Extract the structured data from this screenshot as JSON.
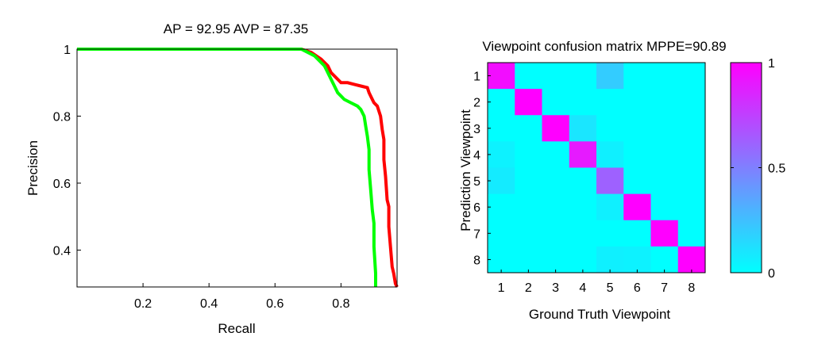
{
  "chart_data": [
    {
      "type": "line",
      "title": "AP = 92.95 AVP = 87.35",
      "xlabel": "Recall",
      "ylabel": "Precision",
      "xlim": [
        0,
        0.97
      ],
      "ylim": [
        0.29,
        1
      ],
      "xticks": [
        "0.2",
        "0.4",
        "0.6",
        "0.8"
      ],
      "yticks": [
        "0.4",
        "0.6",
        "0.8",
        "1"
      ],
      "grid": false,
      "legend": "none",
      "series": [
        {
          "color": "#ff0000",
          "x": [
            0,
            0.68,
            0.71,
            0.74,
            0.76,
            0.77,
            0.79,
            0.8,
            0.82,
            0.84,
            0.86,
            0.88,
            0.885,
            0.89,
            0.895,
            0.9,
            0.91,
            0.92,
            0.925,
            0.93,
            0.93,
            0.935,
            0.94,
            0.945,
            0.945,
            0.95,
            0.955,
            0.96,
            0.965,
            0.97
          ],
          "y": [
            1.0,
            1.0,
            0.99,
            0.97,
            0.95,
            0.93,
            0.91,
            0.9,
            0.9,
            0.895,
            0.89,
            0.885,
            0.87,
            0.86,
            0.85,
            0.84,
            0.83,
            0.8,
            0.76,
            0.73,
            0.67,
            0.62,
            0.55,
            0.53,
            0.47,
            0.41,
            0.35,
            0.33,
            0.3,
            0.29
          ]
        },
        {
          "color": "#00ff00",
          "x": [
            0,
            0.68,
            0.7,
            0.72,
            0.74,
            0.75,
            0.76,
            0.77,
            0.78,
            0.79,
            0.8,
            0.81,
            0.83,
            0.85,
            0.86,
            0.87,
            0.875,
            0.88,
            0.885,
            0.885,
            0.89,
            0.895,
            0.9,
            0.9,
            0.905,
            0.905
          ],
          "y": [
            1.0,
            1.0,
            0.99,
            0.98,
            0.96,
            0.95,
            0.93,
            0.91,
            0.89,
            0.87,
            0.86,
            0.85,
            0.84,
            0.83,
            0.82,
            0.8,
            0.77,
            0.74,
            0.7,
            0.64,
            0.58,
            0.52,
            0.48,
            0.41,
            0.33,
            0.29
          ]
        }
      ]
    },
    {
      "type": "heatmap",
      "title": "Viewpoint confusion matrix MPPE=90.89",
      "xlabel": "Ground Truth Viewpoint",
      "ylabel": "Prediction Viewpoint",
      "x_categories": [
        "1",
        "2",
        "3",
        "4",
        "5",
        "6",
        "7",
        "8"
      ],
      "y_categories": [
        "1",
        "2",
        "3",
        "4",
        "5",
        "6",
        "7",
        "8"
      ],
      "colorbar": {
        "min": 0,
        "max": 1,
        "ticks": [
          "0",
          "0.5",
          "1"
        ],
        "colors": [
          "#00ffff",
          "#ff00ff"
        ]
      },
      "matrix": [
        [
          0.95,
          0.0,
          0.0,
          0.0,
          0.2,
          0.0,
          0.0,
          0.0
        ],
        [
          0.0,
          1.0,
          0.0,
          0.0,
          0.0,
          0.0,
          0.0,
          0.0
        ],
        [
          0.0,
          0.0,
          1.0,
          0.1,
          0.0,
          0.0,
          0.0,
          0.0
        ],
        [
          0.05,
          0.0,
          0.0,
          0.9,
          0.06,
          0.0,
          0.0,
          0.0
        ],
        [
          0.08,
          0.0,
          0.0,
          0.0,
          0.62,
          0.0,
          0.0,
          0.0
        ],
        [
          0.0,
          0.0,
          0.0,
          0.0,
          0.06,
          1.0,
          0.0,
          0.0
        ],
        [
          0.0,
          0.0,
          0.0,
          0.0,
          0.0,
          0.0,
          1.0,
          0.0
        ],
        [
          0.0,
          0.0,
          0.0,
          0.0,
          0.06,
          0.05,
          0.0,
          1.0
        ]
      ]
    }
  ]
}
